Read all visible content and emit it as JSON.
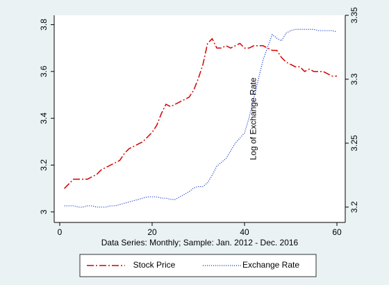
{
  "chart_data": {
    "type": "line",
    "xlabel": "Data Series: Monthly; Sample: Jan. 2012 - Dec. 2016",
    "y2label": "Log of Exchange Rate",
    "x": [
      1,
      2,
      3,
      4,
      5,
      6,
      7,
      8,
      9,
      10,
      11,
      12,
      13,
      14,
      15,
      16,
      17,
      18,
      19,
      20,
      21,
      22,
      23,
      24,
      25,
      26,
      27,
      28,
      29,
      30,
      31,
      32,
      33,
      34,
      35,
      36,
      37,
      38,
      39,
      40,
      41,
      42,
      43,
      44,
      45,
      46,
      47,
      48,
      49,
      50,
      51,
      52,
      53,
      54,
      55,
      56,
      57,
      58,
      59,
      60
    ],
    "xlim": [
      -1.2,
      61.8
    ],
    "xticks": [
      0,
      20,
      40,
      60
    ],
    "ylim": [
      2.955,
      3.84
    ],
    "yticks": [
      3,
      3.2,
      3.4,
      3.6,
      3.8
    ],
    "y2lim": [
      3.188,
      3.35
    ],
    "y2ticks": [
      3.2,
      3.25,
      3.3,
      3.35
    ],
    "legend": "bottom",
    "series": [
      {
        "name": "Stock Price",
        "color": "#d40000",
        "style": "dashdot",
        "values": [
          3.1,
          3.12,
          3.14,
          3.14,
          3.14,
          3.14,
          3.15,
          3.16,
          3.18,
          3.19,
          3.2,
          3.21,
          3.22,
          3.25,
          3.27,
          3.28,
          3.29,
          3.3,
          3.32,
          3.34,
          3.37,
          3.42,
          3.46,
          3.45,
          3.46,
          3.47,
          3.48,
          3.49,
          3.52,
          3.57,
          3.63,
          3.72,
          3.74,
          3.7,
          3.7,
          3.71,
          3.7,
          3.71,
          3.72,
          3.7,
          3.7,
          3.71,
          3.71,
          3.71,
          3.7,
          3.69,
          3.69,
          3.66,
          3.64,
          3.63,
          3.62,
          3.62,
          3.6,
          3.61,
          3.6,
          3.6,
          3.6,
          3.59,
          3.58,
          3.58
        ]
      },
      {
        "name": "Exchange Rate",
        "color": "#2040c8",
        "style": "dotted",
        "axis": "y2",
        "values": [
          3.201,
          3.201,
          3.201,
          3.2,
          3.2,
          3.201,
          3.201,
          3.2,
          3.2,
          3.2,
          3.201,
          3.201,
          3.202,
          3.203,
          3.204,
          3.205,
          3.206,
          3.207,
          3.208,
          3.208,
          3.208,
          3.207,
          3.207,
          3.206,
          3.206,
          3.208,
          3.21,
          3.212,
          3.215,
          3.216,
          3.216,
          3.219,
          3.225,
          3.232,
          3.235,
          3.238,
          3.244,
          3.25,
          3.254,
          3.258,
          3.27,
          3.285,
          3.3,
          3.315,
          3.325,
          3.335,
          3.332,
          3.33,
          3.336,
          3.338,
          3.339,
          3.339,
          3.339,
          3.339,
          3.339,
          3.338,
          3.338,
          3.338,
          3.338,
          3.337
        ]
      }
    ]
  }
}
